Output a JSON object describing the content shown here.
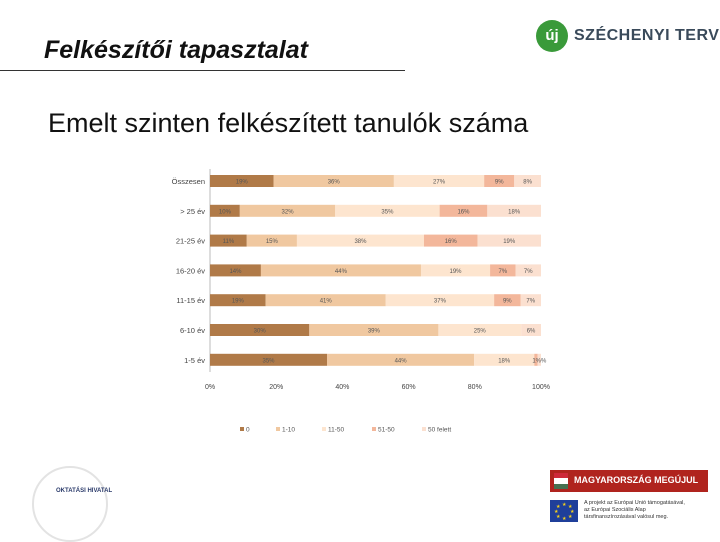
{
  "header": {
    "page_title": "Felkészítői tapasztalat",
    "logo_badge": "új",
    "logo_text": "SZÉCHENYI TERV"
  },
  "subtitle": "Emelt szinten felkészített tanulók száma",
  "chart_data": {
    "type": "bar",
    "orientation": "horizontal",
    "stacked": "percent",
    "categories": [
      "Összesen",
      "> 25 év",
      "21-25 év",
      "16-20 év",
      "11-15 év",
      "6-10 év",
      "1-5 év"
    ],
    "series": [
      {
        "name": "0",
        "color": "#b07a48",
        "values": [
          19,
          10,
          11,
          14,
          19,
          30,
          35
        ]
      },
      {
        "name": "1-10",
        "color": "#f0c8a0",
        "values": [
          36,
          32,
          15,
          44,
          41,
          39,
          44
        ]
      },
      {
        "name": "11-50",
        "color": "#fde5cf",
        "values": [
          27,
          35,
          38,
          19,
          37,
          25,
          18
        ]
      },
      {
        "name": "51-50",
        "color": "#f3b79b",
        "values": [
          9,
          16,
          16,
          7,
          9,
          0,
          1
        ]
      },
      {
        "name": "50 felett",
        "color": "#fbe0d0",
        "values": [
          8,
          18,
          19,
          7,
          7,
          6,
          1
        ]
      }
    ],
    "data_labels": [
      [
        "19%",
        "36%",
        "27%",
        "9%",
        "8%"
      ],
      [
        "10%",
        "32%",
        "35%",
        "16%",
        "18%"
      ],
      [
        "11%",
        "15%",
        "38%",
        "16%",
        "19%"
      ],
      [
        "14%",
        "44%",
        "19%",
        "7%",
        "7%"
      ],
      [
        "19%",
        "41%",
        "37%",
        "9%",
        "7%"
      ],
      [
        "30%",
        "39%",
        "25%",
        "",
        "6%"
      ],
      [
        "35%",
        "44%",
        "18%",
        "",
        "1%%"
      ]
    ],
    "x_ticks": [
      "0%",
      "20%",
      "40%",
      "60%",
      "80%",
      "100%"
    ],
    "xlim": [
      0,
      100
    ],
    "legend_position": "bottom",
    "grid": false,
    "xlabel": "",
    "ylabel": ""
  },
  "footer": {
    "left_logo_text": "OKTATÁSI HIVATAL",
    "badge_text": "MAGYARORSZÁG MEGÚJUL",
    "eu_lines": [
      "A projekt az Európai Unió támogatásával,",
      "az Európai Szociális Alap",
      "társfinanszírozásával valósul meg."
    ],
    "colors": {
      "badge_red": "#b0241e",
      "eu_blue": "#1f3f9a",
      "brand_green": "#3a9a3a"
    }
  }
}
